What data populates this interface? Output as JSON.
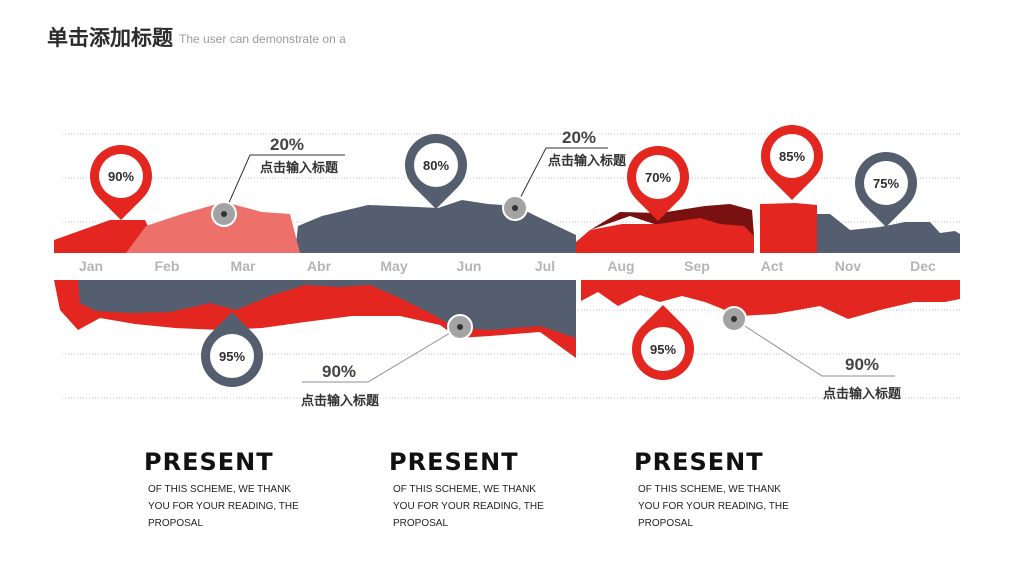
{
  "header": {
    "title": "单击添加标题",
    "subtitle": "The user can demonstrate on a"
  },
  "colors": {
    "red": "#e3261f",
    "dark_red": "#7a1111",
    "salmon": "#ee706b",
    "slate": "#555e6e",
    "axis_text": "#b5b5b5",
    "marker_gray": "#a3a3a3"
  },
  "chart_data": {
    "type": "area",
    "title": "",
    "months": [
      "Jan",
      "Feb",
      "Mar",
      "Abr",
      "May",
      "Jun",
      "Jul",
      "Aug",
      "Sep",
      "Act",
      "Nov",
      "Dec"
    ],
    "pin_markers": [
      {
        "label": "90%",
        "month": "Jan",
        "side": "top",
        "color": "red"
      },
      {
        "label": "80%",
        "month": "May",
        "side": "top",
        "color": "slate"
      },
      {
        "label": "70%",
        "month": "Aug",
        "side": "top",
        "color": "red"
      },
      {
        "label": "85%",
        "month": "Act",
        "side": "top",
        "color": "red"
      },
      {
        "label": "75%",
        "month": "Nov",
        "side": "top",
        "color": "slate"
      },
      {
        "label": "95%",
        "month": "Mar",
        "side": "bottom",
        "color": "slate"
      },
      {
        "label": "95%",
        "month": "Aug",
        "side": "bottom",
        "color": "red"
      }
    ],
    "callouts": [
      {
        "value": "20%",
        "text": "点击输入标题",
        "month": "Mar",
        "side": "top"
      },
      {
        "value": "20%",
        "text": "点击输入标题",
        "month": "Jul",
        "side": "top"
      },
      {
        "value": "90%",
        "text": "点击输入标题",
        "month": "Jun",
        "side": "bottom"
      },
      {
        "value": "90%",
        "text": "点击输入标题",
        "month": "Sep",
        "side": "bottom"
      }
    ]
  },
  "cards": [
    {
      "title": "PRESENT",
      "text": "OF THIS SCHEME, WE THANK YOU FOR YOUR READING, THE PROPOSAL"
    },
    {
      "title": "PRESENT",
      "text": "OF THIS SCHEME, WE THANK YOU FOR YOUR READING, THE PROPOSAL"
    },
    {
      "title": "PRESENT",
      "text": "OF THIS SCHEME, WE THANK YOU FOR YOUR READING, THE PROPOSAL"
    }
  ]
}
